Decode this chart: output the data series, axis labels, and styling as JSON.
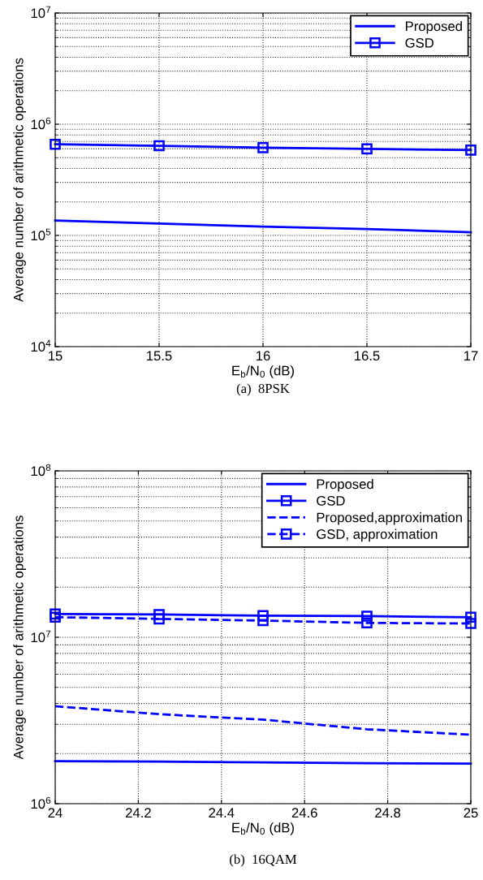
{
  "chart_data": [
    {
      "type": "line",
      "xlabel": "E$_{b}$/N$_{0}$ (dB)",
      "ylabel": "Average number of arithmetic operations",
      "annotations": [
        "(a)  8PSK"
      ],
      "x": [
        15,
        15.5,
        16,
        16.5,
        17
      ],
      "xlim": [
        15,
        17
      ],
      "xticks": [
        15,
        15.5,
        16,
        16.5,
        17
      ],
      "log": "y",
      "ylim": [
        10000,
        10000000
      ],
      "yticks": [
        {
          "value": 10000,
          "label": "10$^{4}$"
        },
        {
          "value": 100000,
          "label": "10$^{5}$"
        },
        {
          "value": 1000000,
          "label": "10$^{6}$"
        },
        {
          "value": 10000000,
          "label": "10$^{7}$"
        }
      ],
      "grid": true,
      "legend": "top right",
      "series": [
        {
          "name": "Proposed",
          "color": "#0000ff",
          "marker": "none",
          "line_style": "solid",
          "values": [
            136000,
            128000,
            120000,
            114000,
            107000
          ]
        },
        {
          "name": "GSD",
          "color": "#0000ff",
          "marker": "square",
          "line_style": "solid",
          "values": [
            660000,
            640000,
            615000,
            600000,
            585000
          ]
        }
      ]
    },
    {
      "type": "line",
      "xlabel": "E$_{b}$/N$_{0}$ (dB)",
      "ylabel": "Average number of arithmetic operations",
      "annotations": [
        "(b)  16QAM"
      ],
      "x": [
        24,
        24.25,
        24.5,
        24.75,
        25
      ],
      "xlim": [
        24,
        25
      ],
      "xticks": [
        24,
        24.2,
        24.4,
        24.6,
        24.8,
        25
      ],
      "log": "y",
      "ylim": [
        1000000,
        100000000
      ],
      "yticks": [
        {
          "value": 1000000,
          "label": "10$^{6}$"
        },
        {
          "value": 10000000,
          "label": "10$^{7}$"
        },
        {
          "value": 100000000,
          "label": "10$^{8}$"
        }
      ],
      "grid": true,
      "legend": "top right",
      "series": [
        {
          "name": "Proposed",
          "color": "#0000ff",
          "marker": "none",
          "line_style": "solid",
          "values": [
            1800000,
            1790000,
            1770000,
            1750000,
            1740000
          ]
        },
        {
          "name": "GSD",
          "color": "#0000ff",
          "marker": "square",
          "line_style": "solid",
          "values": [
            13800000,
            13700000,
            13500000,
            13400000,
            13200000
          ]
        },
        {
          "name": "Proposed,approximation",
          "color": "#0000ff",
          "marker": "none",
          "line_style": "dashed",
          "values": [
            3850000,
            3450000,
            3200000,
            2800000,
            2600000
          ]
        },
        {
          "name": "GSD, approximation",
          "color": "#0000ff",
          "marker": "square",
          "line_style": "dashed",
          "values": [
            13200000,
            12900000,
            12600000,
            12200000,
            12100000
          ]
        }
      ]
    }
  ]
}
